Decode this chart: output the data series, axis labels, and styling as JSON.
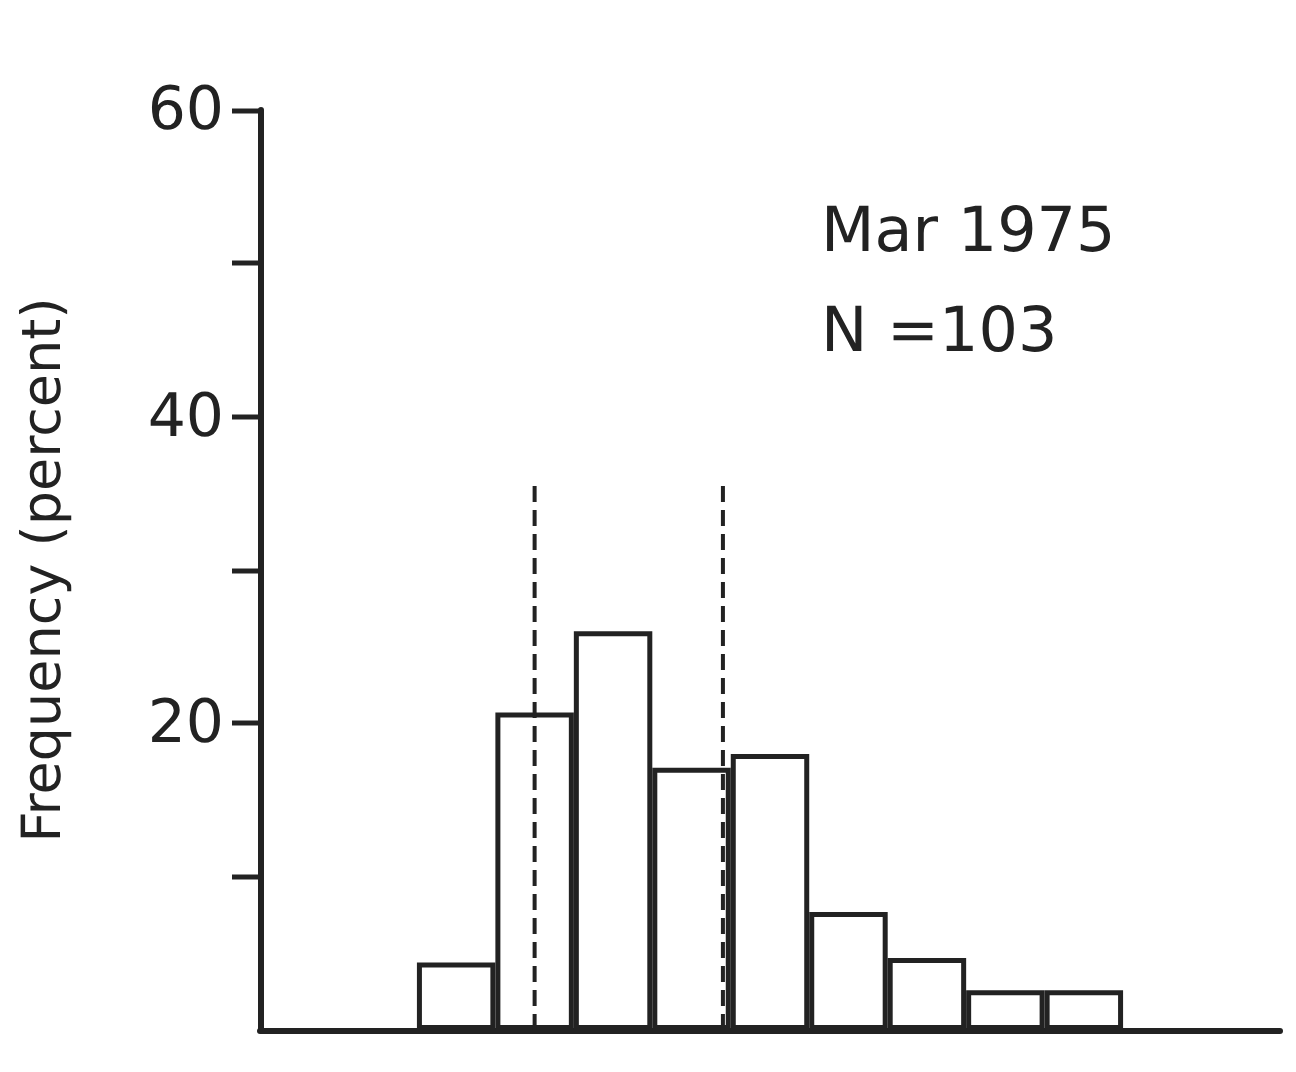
{
  "chart_data": {
    "type": "bar",
    "ylabel": "Frequency (percent)",
    "categories": [
      null,
      null,
      null,
      null,
      null,
      null,
      null,
      null,
      null,
      null,
      null,
      null,
      null
    ],
    "values": [
      null,
      null,
      4.4,
      20.7,
      26.0,
      17.1,
      18.0,
      7.7,
      4.7,
      2.6,
      2.6,
      null,
      null
    ],
    "color": "#ffffff",
    "ylim": [
      0,
      60
    ],
    "yticks": [
      {
        "value": 10,
        "label": null
      },
      20,
      {
        "value": 30,
        "label": null
      },
      40,
      {
        "value": 50,
        "label": null
      },
      60
    ],
    "annotations": [
      "Mar 1975",
      "N =103"
    ],
    "grid": false
  }
}
